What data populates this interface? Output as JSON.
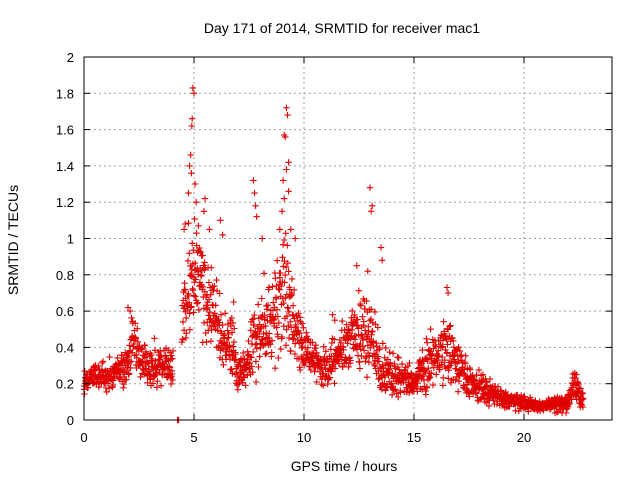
{
  "chart_data": {
    "type": "scatter",
    "title": "Day 171 of 2014, SRMTID for receiver mac1",
    "xlabel": "GPS time / hours",
    "ylabel": "SRMTID / TECUs",
    "xlim": [
      0,
      24
    ],
    "ylim": [
      0,
      2
    ],
    "xticks": [
      0,
      5,
      10,
      15,
      20
    ],
    "xtick_labels": [
      "0",
      "5",
      "10",
      "15",
      "20"
    ],
    "yticks": [
      0,
      0.2,
      0.4,
      0.6,
      0.8,
      1,
      1.2,
      1.4,
      1.6,
      1.8,
      2
    ],
    "ytick_labels": [
      "0",
      "0.2",
      "0.4",
      "0.6",
      "0.8",
      "1",
      "1.2",
      "1.4",
      "1.6",
      "1.8",
      "2"
    ],
    "grid": true,
    "marker": "+",
    "color": "#e00000",
    "x_data_end": 22.7,
    "series": [
      {
        "name": "mac1",
        "profile": {
          "x": [
            0,
            0.5,
            1.0,
            1.5,
            2.0,
            2.2,
            2.5,
            3.0,
            3.5,
            3.8,
            4.0,
            4.3,
            4.5,
            4.7,
            5.0,
            5.3,
            5.6,
            6.0,
            6.3,
            6.7,
            7.0,
            7.5,
            7.8,
            8.2,
            8.6,
            9.0,
            9.3,
            9.6,
            10.0,
            10.4,
            10.8,
            11.2,
            11.6,
            12.0,
            12.4,
            12.8,
            13.1,
            13.5,
            14.0,
            14.5,
            15.0,
            15.5,
            16.0,
            16.5,
            17.0,
            17.5,
            18.0,
            18.5,
            19.0,
            19.5,
            20.0,
            20.5,
            21.0,
            21.5,
            22.0,
            22.3,
            22.7
          ],
          "y": [
            0.22,
            0.25,
            0.24,
            0.25,
            0.32,
            0.48,
            0.35,
            0.28,
            0.3,
            0.28,
            0.26,
            0.3,
            0.62,
            0.72,
            0.85,
            0.75,
            0.62,
            0.58,
            0.4,
            0.45,
            0.22,
            0.35,
            0.42,
            0.55,
            0.55,
            0.72,
            0.65,
            0.52,
            0.38,
            0.35,
            0.3,
            0.33,
            0.35,
            0.42,
            0.5,
            0.48,
            0.45,
            0.3,
            0.25,
            0.22,
            0.2,
            0.28,
            0.35,
            0.42,
            0.3,
            0.22,
            0.18,
            0.15,
            0.12,
            0.1,
            0.09,
            0.08,
            0.08,
            0.09,
            0.1,
            0.18,
            0.12
          ],
          "spread": [
            0.06,
            0.07,
            0.07,
            0.07,
            0.1,
            0.12,
            0.1,
            0.09,
            0.1,
            0.09,
            0.08,
            0.1,
            0.2,
            0.25,
            0.3,
            0.25,
            0.22,
            0.18,
            0.15,
            0.15,
            0.08,
            0.12,
            0.2,
            0.18,
            0.2,
            0.35,
            0.25,
            0.15,
            0.12,
            0.1,
            0.1,
            0.1,
            0.12,
            0.15,
            0.18,
            0.25,
            0.2,
            0.15,
            0.1,
            0.08,
            0.08,
            0.12,
            0.15,
            0.18,
            0.12,
            0.08,
            0.07,
            0.06,
            0.05,
            0.04,
            0.04,
            0.03,
            0.03,
            0.04,
            0.05,
            0.08,
            0.06
          ]
        },
        "peaks": [
          {
            "x": 4.95,
            "y": 1.83
          },
          {
            "x": 5.0,
            "y": 1.8
          },
          {
            "x": 4.92,
            "y": 1.66
          },
          {
            "x": 4.9,
            "y": 1.62
          },
          {
            "x": 4.85,
            "y": 1.46
          },
          {
            "x": 4.8,
            "y": 1.4
          },
          {
            "x": 4.88,
            "y": 1.36
          },
          {
            "x": 5.05,
            "y": 1.3
          },
          {
            "x": 4.75,
            "y": 1.25
          },
          {
            "x": 5.1,
            "y": 1.2
          },
          {
            "x": 5.5,
            "y": 1.22
          },
          {
            "x": 5.45,
            "y": 1.15
          },
          {
            "x": 4.6,
            "y": 1.08
          },
          {
            "x": 4.55,
            "y": 1.05
          },
          {
            "x": 5.2,
            "y": 1.07
          },
          {
            "x": 5.7,
            "y": 1.05
          },
          {
            "x": 6.2,
            "y": 1.1
          },
          {
            "x": 6.3,
            "y": 1.02
          },
          {
            "x": 7.7,
            "y": 1.32
          },
          {
            "x": 7.75,
            "y": 1.25
          },
          {
            "x": 7.8,
            "y": 1.18
          },
          {
            "x": 7.85,
            "y": 1.12
          },
          {
            "x": 8.1,
            "y": 1.0
          },
          {
            "x": 9.2,
            "y": 1.72
          },
          {
            "x": 9.25,
            "y": 1.68
          },
          {
            "x": 9.1,
            "y": 1.57
          },
          {
            "x": 9.15,
            "y": 1.56
          },
          {
            "x": 9.3,
            "y": 1.42
          },
          {
            "x": 9.2,
            "y": 1.38
          },
          {
            "x": 9.05,
            "y": 1.32
          },
          {
            "x": 9.1,
            "y": 1.22
          },
          {
            "x": 9.0,
            "y": 1.15
          },
          {
            "x": 9.3,
            "y": 1.26
          },
          {
            "x": 8.9,
            "y": 1.05
          },
          {
            "x": 9.4,
            "y": 1.05
          },
          {
            "x": 9.6,
            "y": 1.0
          },
          {
            "x": 13.0,
            "y": 1.28
          },
          {
            "x": 13.1,
            "y": 1.18
          },
          {
            "x": 13.05,
            "y": 1.15
          },
          {
            "x": 12.4,
            "y": 0.85
          },
          {
            "x": 12.9,
            "y": 0.82
          },
          {
            "x": 13.5,
            "y": 0.95
          },
          {
            "x": 13.55,
            "y": 0.88
          },
          {
            "x": 16.5,
            "y": 0.73
          },
          {
            "x": 16.55,
            "y": 0.7
          },
          {
            "x": 11.3,
            "y": 0.58
          },
          {
            "x": 11.4,
            "y": 0.55
          },
          {
            "x": 6.8,
            "y": 0.65
          },
          {
            "x": 2.0,
            "y": 0.62
          },
          {
            "x": 2.1,
            "y": 0.6
          },
          {
            "x": 3.2,
            "y": 0.45
          }
        ],
        "zero_points": [
          {
            "x": 4.25,
            "y": 0.0
          },
          {
            "x": 4.3,
            "y": 0.0
          }
        ]
      }
    ]
  }
}
